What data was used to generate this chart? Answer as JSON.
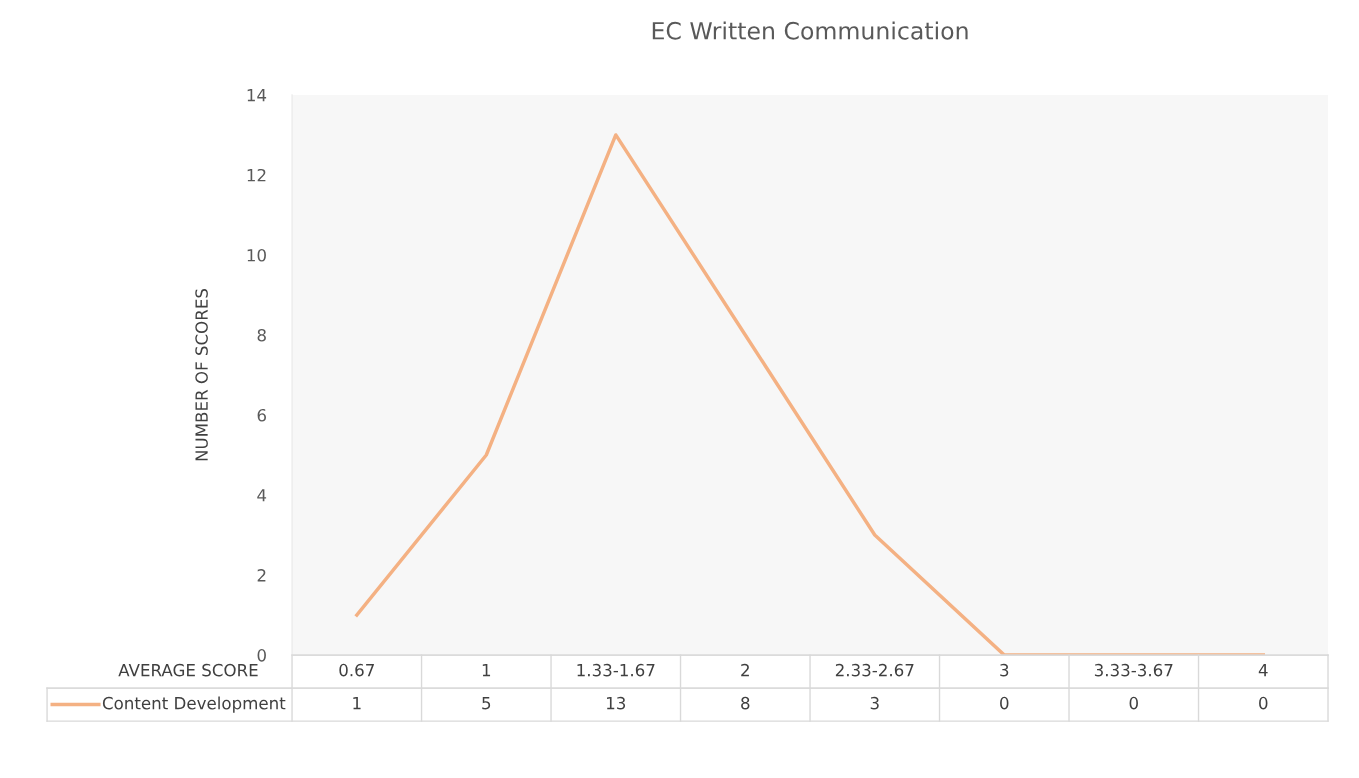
{
  "chart_data": {
    "type": "line",
    "title": "EC Written Communication",
    "xlabel": "AVERAGE SCORE",
    "ylabel": "NUMBER OF SCORES",
    "categories": [
      "0.67",
      "1",
      "1.33-1.67",
      "2",
      "2.33-2.67",
      "3",
      "3.33-3.67",
      "4"
    ],
    "series": [
      {
        "name": "Content Development",
        "color": "#f4b183",
        "values": [
          1,
          5,
          13,
          8,
          3,
          0,
          0,
          0
        ]
      }
    ],
    "ylim": [
      0,
      14
    ],
    "yticks": [
      0,
      2,
      4,
      6,
      8,
      10,
      12,
      14
    ],
    "grid": false,
    "legend": "bottom",
    "data_labels": true,
    "marker": "none",
    "line_style": "solid"
  }
}
